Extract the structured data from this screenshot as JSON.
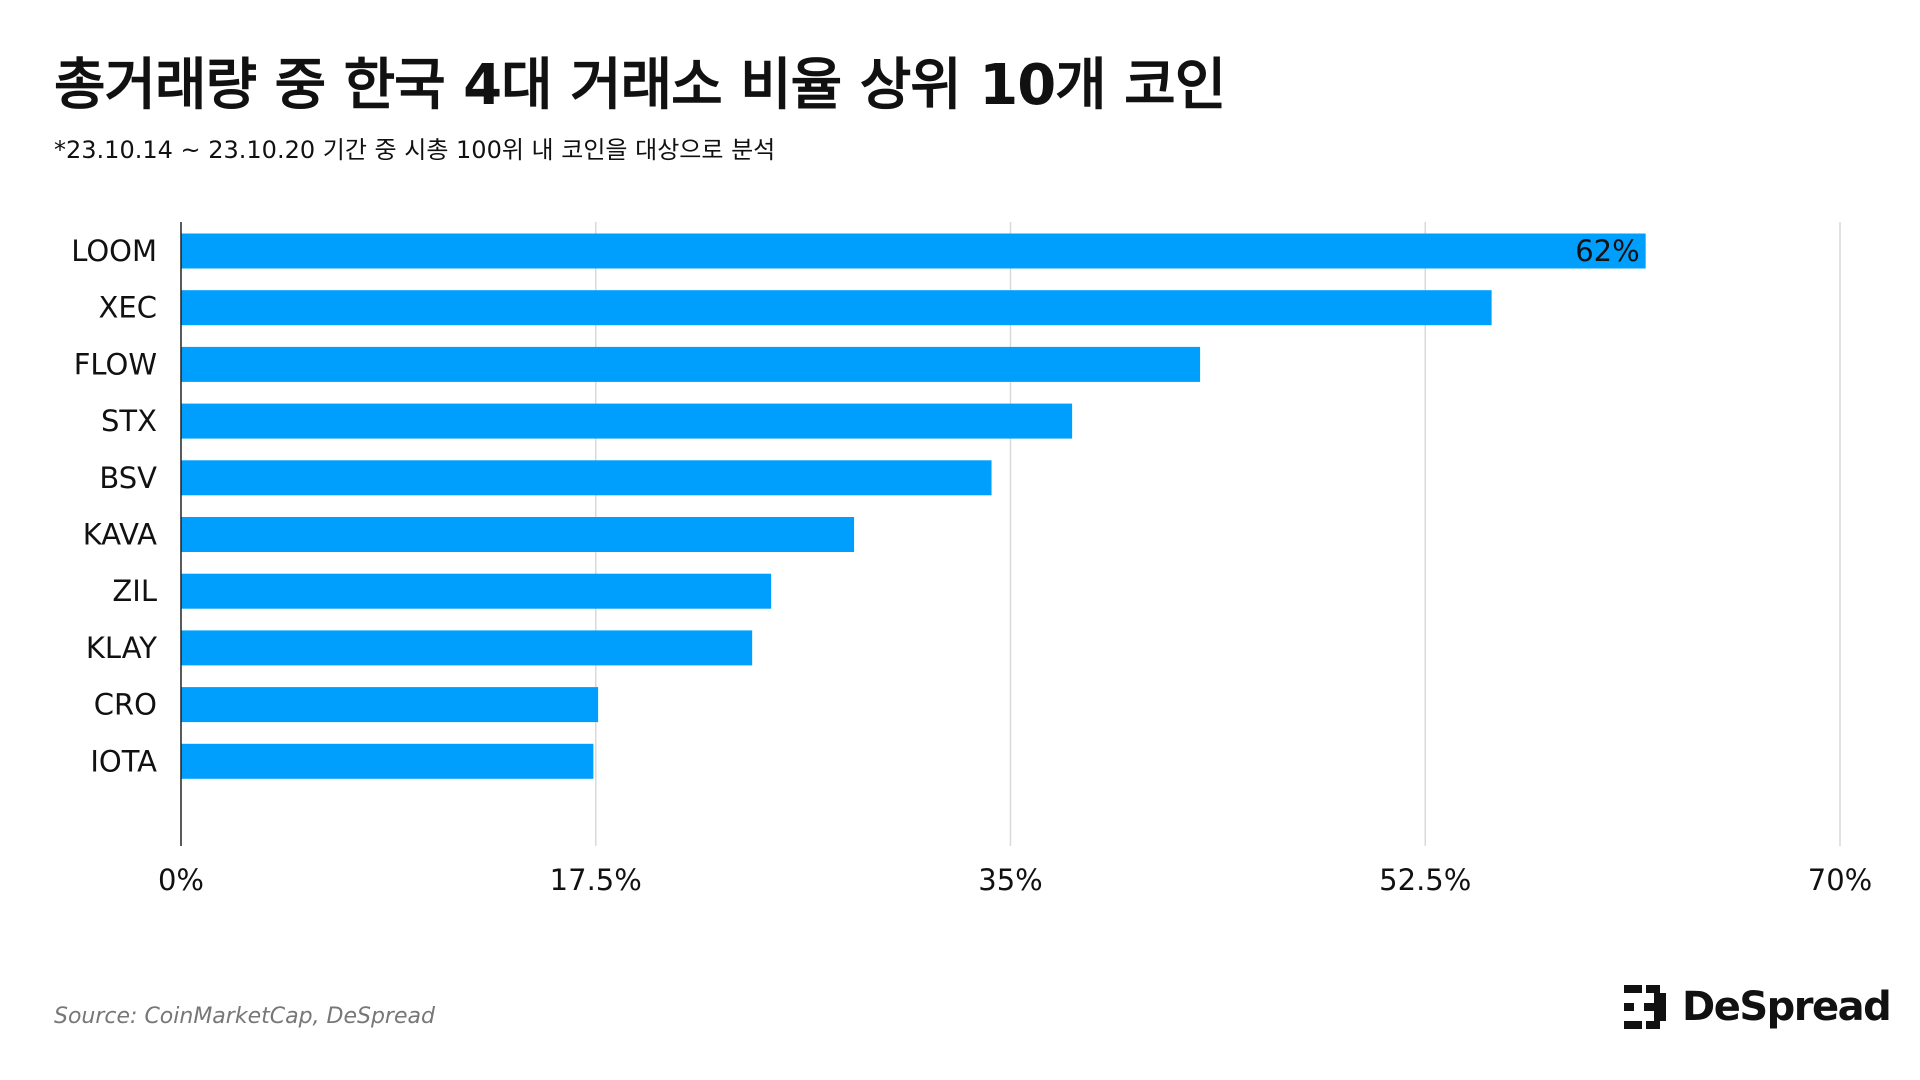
{
  "header": {
    "title": "총거래량 중 한국 4대 거래소 비율 상위 10개 코인",
    "subtitle": "*23.10.14 ~ 23.10.20 기간 중 시총 100위 내 코인을 대상으로 분석"
  },
  "footer": {
    "source": "Source: CoinMarketCap, DeSpread",
    "brand": "DeSpread",
    "brand_icon": "despread-logo-icon"
  },
  "colors": {
    "bar": "#009ffd",
    "grid": "#d9d9d9",
    "axis": "#222222",
    "text": "#111111"
  },
  "chart_data": {
    "type": "bar",
    "orientation": "horizontal",
    "categories": [
      "LOOM",
      "XEC",
      "FLOW",
      "STX",
      "BSV",
      "KAVA",
      "ZIL",
      "KLAY",
      "CRO",
      "IOTA"
    ],
    "values": [
      61.8,
      55.3,
      43.0,
      37.6,
      34.2,
      28.4,
      24.9,
      24.1,
      17.6,
      17.4
    ],
    "data_labels": [
      "62%",
      "",
      "",
      "",
      "",
      "",
      "",
      "",
      "",
      ""
    ],
    "xlim": [
      0,
      70
    ],
    "xticks": [
      0,
      17.5,
      35,
      52.5,
      70
    ],
    "xtick_labels": [
      "0%",
      "17.5%",
      "35%",
      "52.5%",
      "70%"
    ],
    "grid": true,
    "legend": "none"
  }
}
